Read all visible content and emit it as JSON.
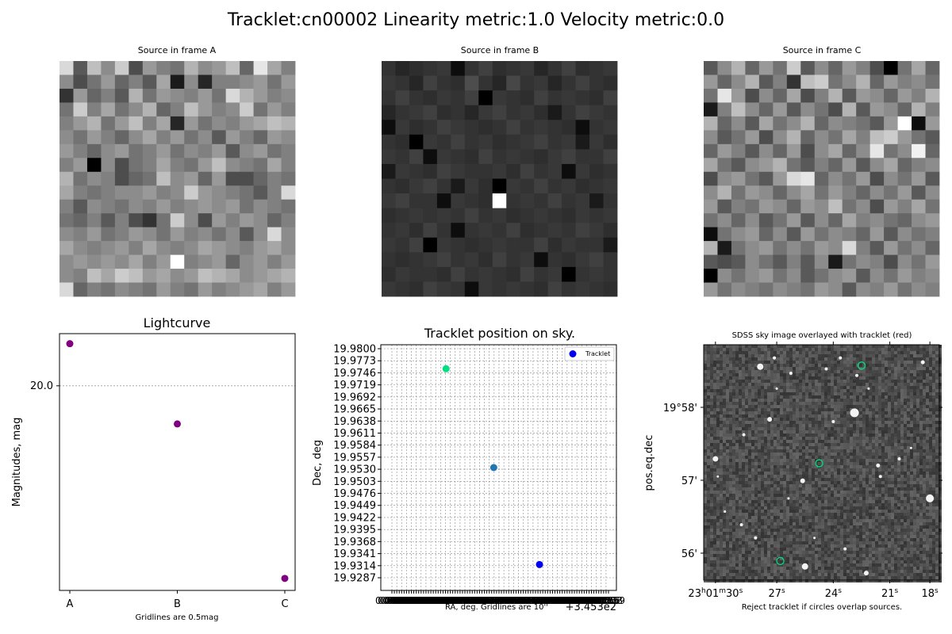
{
  "figure": {
    "title": "Tracklet:cn00002 Linearity metric:1.0 Velocity metric:0.0"
  },
  "stamps": [
    {
      "title": "Source in frame A",
      "pixels": [
        [
          0.85,
          0.35,
          0.75,
          0.55,
          0.8,
          0.3,
          0.6,
          0.5,
          0.45,
          0.7,
          0.55,
          0.6,
          0.75,
          0.4,
          0.9,
          0.65,
          0.5
        ],
        [
          0.55,
          0.3,
          0.45,
          0.6,
          0.4,
          0.5,
          0.35,
          0.65,
          0.1,
          0.55,
          0.15,
          0.5,
          0.5,
          0.55,
          0.6,
          0.45,
          0.6
        ],
        [
          0.2,
          0.6,
          0.4,
          0.5,
          0.35,
          0.7,
          0.45,
          0.6,
          0.55,
          0.5,
          0.6,
          0.45,
          0.85,
          0.7,
          0.6,
          0.5,
          0.55
        ],
        [
          0.45,
          0.8,
          0.5,
          0.65,
          0.45,
          0.55,
          0.7,
          0.4,
          0.5,
          0.75,
          0.6,
          0.5,
          0.55,
          0.8,
          0.45,
          0.6,
          0.5
        ],
        [
          0.5,
          0.6,
          0.7,
          0.45,
          0.6,
          0.75,
          0.5,
          0.65,
          0.15,
          0.6,
          0.45,
          0.55,
          0.5,
          0.6,
          0.65,
          0.75,
          0.7
        ],
        [
          0.55,
          0.45,
          0.6,
          0.5,
          0.4,
          0.55,
          0.65,
          0.5,
          0.6,
          0.45,
          0.55,
          0.35,
          0.6,
          0.5,
          0.4,
          0.6,
          0.55
        ],
        [
          0.6,
          0.5,
          0.4,
          0.55,
          0.6,
          0.45,
          0.5,
          0.6,
          0.45,
          0.55,
          0.5,
          0.6,
          0.35,
          0.55,
          0.6,
          0.45,
          0.5
        ],
        [
          0.5,
          0.6,
          0.0,
          0.55,
          0.3,
          0.45,
          0.5,
          0.65,
          0.5,
          0.45,
          0.6,
          0.75,
          0.55,
          0.5,
          0.45,
          0.65,
          0.5
        ],
        [
          0.7,
          0.45,
          0.55,
          0.5,
          0.3,
          0.4,
          0.45,
          0.75,
          0.55,
          0.6,
          0.4,
          0.6,
          0.3,
          0.3,
          0.4,
          0.5,
          0.45
        ],
        [
          0.65,
          0.5,
          0.45,
          0.5,
          0.55,
          0.55,
          0.6,
          0.5,
          0.55,
          0.8,
          0.6,
          0.55,
          0.5,
          0.45,
          0.35,
          0.5,
          0.85
        ],
        [
          0.5,
          0.35,
          0.55,
          0.5,
          0.45,
          0.55,
          0.5,
          0.6,
          0.5,
          0.55,
          0.6,
          0.55,
          0.6,
          0.45,
          0.55,
          0.5,
          0.45
        ],
        [
          0.45,
          0.4,
          0.5,
          0.35,
          0.5,
          0.3,
          0.2,
          0.45,
          0.8,
          0.55,
          0.3,
          0.6,
          0.5,
          0.6,
          0.55,
          0.4,
          0.5
        ],
        [
          0.55,
          0.5,
          0.6,
          0.45,
          0.5,
          0.6,
          0.55,
          0.45,
          0.6,
          0.5,
          0.55,
          0.45,
          0.55,
          0.35,
          0.55,
          0.85,
          0.55
        ],
        [
          0.65,
          0.55,
          0.5,
          0.55,
          0.6,
          0.5,
          0.65,
          0.55,
          0.5,
          0.55,
          0.65,
          0.6,
          0.55,
          0.5,
          0.6,
          0.65,
          0.55
        ],
        [
          0.55,
          0.6,
          0.55,
          0.6,
          0.55,
          0.65,
          0.5,
          0.6,
          1.0,
          0.5,
          0.55,
          0.6,
          0.4,
          0.55,
          0.6,
          0.5,
          0.6
        ],
        [
          0.55,
          0.5,
          0.75,
          0.65,
          0.8,
          0.75,
          0.6,
          0.65,
          0.55,
          0.6,
          0.75,
          0.7,
          0.65,
          0.55,
          0.6,
          0.65,
          0.7
        ],
        [
          0.85,
          0.4,
          0.5,
          0.45,
          0.55,
          0.5,
          0.45,
          0.6,
          0.5,
          0.45,
          0.6,
          0.5,
          0.55,
          0.6,
          0.65,
          0.5,
          0.6
        ]
      ]
    },
    {
      "title": "Source in frame B",
      "pixels": [
        [
          0.2,
          0.15,
          0.18,
          0.2,
          0.22,
          0.05,
          0.2,
          0.25,
          0.18,
          0.2,
          0.22,
          0.15,
          0.2,
          0.25,
          0.18,
          0.2,
          0.22
        ],
        [
          0.22,
          0.2,
          0.15,
          0.25,
          0.2,
          0.18,
          0.3,
          0.2,
          0.15,
          0.28,
          0.2,
          0.22,
          0.15,
          0.2,
          0.25,
          0.2,
          0.18
        ],
        [
          0.2,
          0.25,
          0.2,
          0.18,
          0.22,
          0.2,
          0.25,
          0.0,
          0.22,
          0.2,
          0.18,
          0.25,
          0.2,
          0.22,
          0.2,
          0.18,
          0.25
        ],
        [
          0.15,
          0.2,
          0.22,
          0.25,
          0.18,
          0.2,
          0.15,
          0.22,
          0.25,
          0.2,
          0.22,
          0.18,
          0.1,
          0.2,
          0.25,
          0.22,
          0.2
        ],
        [
          0.05,
          0.22,
          0.18,
          0.2,
          0.25,
          0.22,
          0.2,
          0.18,
          0.2,
          0.25,
          0.2,
          0.22,
          0.2,
          0.18,
          0.05,
          0.2,
          0.22
        ],
        [
          0.2,
          0.18,
          0.0,
          0.22,
          0.2,
          0.25,
          0.2,
          0.22,
          0.18,
          0.2,
          0.22,
          0.25,
          0.2,
          0.22,
          0.1,
          0.22,
          0.18
        ],
        [
          0.22,
          0.2,
          0.25,
          0.05,
          0.22,
          0.2,
          0.18,
          0.25,
          0.2,
          0.22,
          0.2,
          0.18,
          0.22,
          0.25,
          0.2,
          0.2,
          0.25
        ],
        [
          0.1,
          0.22,
          0.2,
          0.18,
          0.25,
          0.22,
          0.2,
          0.2,
          0.22,
          0.18,
          0.25,
          0.2,
          0.22,
          0.05,
          0.22,
          0.18,
          0.2
        ],
        [
          0.2,
          0.18,
          0.22,
          0.25,
          0.2,
          0.1,
          0.22,
          0.18,
          0.0,
          0.22,
          0.2,
          0.25,
          0.2,
          0.22,
          0.18,
          0.2,
          0.22
        ],
        [
          0.22,
          0.25,
          0.2,
          0.2,
          0.05,
          0.22,
          0.2,
          0.18,
          1.0,
          0.2,
          0.22,
          0.2,
          0.25,
          0.2,
          0.22,
          0.1,
          0.2
        ],
        [
          0.18,
          0.2,
          0.22,
          0.2,
          0.22,
          0.2,
          0.25,
          0.2,
          0.22,
          0.18,
          0.2,
          0.22,
          0.2,
          0.18,
          0.22,
          0.2,
          0.22
        ],
        [
          0.2,
          0.22,
          0.18,
          0.25,
          0.2,
          0.05,
          0.2,
          0.22,
          0.2,
          0.25,
          0.18,
          0.2,
          0.22,
          0.2,
          0.25,
          0.22,
          0.18
        ],
        [
          0.22,
          0.2,
          0.25,
          0.0,
          0.22,
          0.2,
          0.18,
          0.2,
          0.22,
          0.2,
          0.2,
          0.25,
          0.18,
          0.22,
          0.2,
          0.2,
          0.1
        ],
        [
          0.2,
          0.18,
          0.2,
          0.22,
          0.25,
          0.2,
          0.22,
          0.18,
          0.25,
          0.2,
          0.22,
          0.05,
          0.2,
          0.18,
          0.22,
          0.25,
          0.2
        ],
        [
          0.18,
          0.22,
          0.2,
          0.2,
          0.18,
          0.25,
          0.2,
          0.22,
          0.2,
          0.18,
          0.25,
          0.2,
          0.22,
          0.0,
          0.2,
          0.22,
          0.2
        ],
        [
          0.22,
          0.2,
          0.18,
          0.25,
          0.22,
          0.2,
          0.05,
          0.22,
          0.2,
          0.22,
          0.2,
          0.18,
          0.25,
          0.2,
          0.22,
          0.2,
          0.18
        ]
      ]
    },
    {
      "title": "Source in frame C",
      "pixels": [
        [
          0.35,
          0.55,
          0.7,
          0.4,
          0.6,
          0.45,
          0.8,
          0.35,
          0.55,
          0.4,
          0.6,
          0.5,
          0.3,
          0.0,
          0.45,
          0.65,
          0.4
        ],
        [
          0.6,
          0.4,
          0.55,
          0.7,
          0.35,
          0.5,
          0.2,
          0.75,
          0.8,
          0.45,
          0.55,
          0.7,
          0.4,
          0.6,
          0.5,
          0.55,
          0.45
        ],
        [
          0.45,
          0.9,
          0.6,
          0.3,
          0.55,
          0.4,
          0.65,
          0.3,
          0.5,
          0.7,
          0.35,
          0.6,
          0.55,
          0.4,
          0.6,
          0.5,
          0.7
        ],
        [
          0.1,
          0.5,
          0.75,
          0.55,
          0.4,
          0.6,
          0.35,
          0.55,
          0.45,
          0.3,
          0.7,
          0.35,
          0.6,
          0.55,
          0.4,
          0.7,
          0.5
        ],
        [
          0.7,
          0.4,
          0.55,
          0.35,
          0.65,
          0.45,
          0.55,
          0.7,
          0.4,
          0.55,
          0.5,
          0.45,
          0.35,
          0.6,
          1.0,
          0.05,
          0.6
        ],
        [
          0.55,
          0.35,
          0.45,
          0.6,
          0.3,
          0.55,
          0.7,
          0.4,
          0.55,
          0.45,
          0.65,
          0.5,
          0.75,
          0.8,
          0.6,
          0.45,
          0.35
        ],
        [
          0.4,
          0.6,
          0.5,
          0.35,
          0.55,
          0.4,
          0.6,
          0.3,
          0.55,
          0.65,
          0.4,
          0.55,
          0.9,
          0.45,
          0.55,
          0.95,
          0.4
        ],
        [
          0.65,
          0.45,
          0.35,
          0.55,
          0.6,
          0.7,
          0.45,
          0.35,
          0.5,
          0.4,
          0.6,
          0.35,
          0.55,
          0.65,
          0.4,
          0.5,
          0.55
        ],
        [
          0.3,
          0.55,
          0.6,
          0.45,
          0.35,
          0.6,
          0.85,
          0.9,
          0.4,
          0.55,
          0.45,
          0.6,
          0.3,
          0.55,
          0.45,
          0.6,
          0.35
        ],
        [
          0.55,
          0.7,
          0.45,
          0.6,
          0.55,
          0.4,
          0.55,
          0.65,
          0.45,
          0.6,
          0.5,
          0.4,
          0.55,
          0.45,
          0.6,
          0.35,
          0.55
        ],
        [
          0.6,
          0.35,
          0.5,
          0.45,
          0.6,
          0.55,
          0.4,
          0.6,
          0.55,
          0.75,
          0.45,
          0.55,
          0.3,
          0.6,
          0.5,
          0.65,
          0.45
        ],
        [
          0.45,
          0.55,
          0.4,
          0.55,
          0.35,
          0.45,
          0.6,
          0.35,
          0.55,
          0.4,
          0.65,
          0.5,
          0.55,
          0.45,
          0.4,
          0.55,
          0.6
        ],
        [
          0.05,
          0.45,
          0.55,
          0.6,
          0.4,
          0.55,
          0.35,
          0.6,
          0.45,
          0.55,
          0.5,
          0.4,
          0.6,
          0.35,
          0.55,
          0.45,
          0.5
        ],
        [
          0.7,
          0.1,
          0.45,
          0.55,
          0.6,
          0.45,
          0.55,
          0.45,
          0.6,
          0.55,
          0.85,
          0.5,
          0.35,
          0.6,
          0.45,
          0.55,
          0.4
        ],
        [
          0.35,
          0.3,
          0.35,
          0.55,
          0.45,
          0.35,
          0.5,
          0.35,
          0.55,
          0.1,
          0.45,
          0.55,
          0.5,
          0.3,
          0.55,
          0.45,
          0.6
        ],
        [
          0.0,
          0.55,
          0.45,
          0.55,
          0.6,
          0.45,
          0.55,
          0.35,
          0.45,
          0.55,
          0.6,
          0.35,
          0.55,
          0.45,
          0.6,
          0.5,
          0.55
        ],
        [
          0.6,
          0.45,
          0.55,
          0.5,
          0.45,
          0.55,
          0.5,
          0.45,
          0.6,
          0.55,
          0.35,
          0.55,
          0.5,
          0.6,
          0.45,
          0.55,
          0.5
        ]
      ]
    }
  ],
  "chart_data": [
    {
      "type": "scatter",
      "title": "Lightcurve",
      "xlabel": "Gridlines are 0.5mag",
      "ylabel": "Magnitudes, mag",
      "categories": [
        "A",
        "B",
        "C"
      ],
      "values": [
        19.79,
        20.19,
        20.96
      ],
      "ylim": [
        19.74,
        21.02
      ],
      "y_ticks": [
        "20.0"
      ],
      "y_tick_values": [
        20.0
      ],
      "grid": "dashed horizontal",
      "color": "#800080"
    },
    {
      "type": "scatter",
      "title": "Tracklet position on sky.",
      "xlabel": "RA, deg.  Gridlines are 10''",
      "ylabel": "Dec, deg",
      "x_offset_label": "+3.453e2",
      "x_tick_labels": [
        "0.0027",
        "0.0030",
        "0.0032",
        "0.0035",
        "0.0038",
        "0.0040",
        "0.0043",
        "0.0045",
        "0.0048",
        "0.0050",
        "0.0053",
        "0.0056",
        "0.0058",
        "0.0061",
        "0.0064",
        "0.0066",
        "0.0069",
        "0.0072",
        "0.0074",
        "0.0077",
        "0.0080",
        "0.0082",
        "0.0085",
        "0.0087",
        "0.0090",
        "0.0093",
        "0.0095",
        "0.0098",
        "0.0100",
        "0.0103",
        "0.0106",
        "0.0108",
        "0.0111",
        "0.0113",
        "0.0116",
        "0.0119",
        "0.0121",
        "0.0124",
        "0.0127",
        "0.0129",
        "0.0132",
        "0.0135",
        "0.0137",
        "0.0140",
        "0.0142",
        "0.0145",
        "0.0148",
        "0.0150",
        "0.0153",
        "0.0156",
        "0.0158",
        "0.0161",
        "0.0163",
        "0.0166",
        "0.0169",
        "0.0171",
        "0.0174",
        "0.0177",
        "0.0179",
        "0.0182",
        "0.0184",
        "0.0187",
        "0.0190",
        "0.0192",
        "0.0195",
        "0.0198",
        "0.0200",
        "0.0203",
        "0.0205",
        "0.0208",
        "0.0211",
        "0.0213",
        "0.0216",
        "0.0219",
        "0.0221",
        "0.0224",
        "0.0227",
        "0.0229",
        "0.0232",
        "0.0234",
        "0.0237",
        "0.0240",
        "0.0242",
        "0.0245",
        "0.0248",
        "0.0250",
        "0.0253",
        "0.0255",
        "0.0258",
        "0.0259"
      ],
      "y_ticks": [
        "19.9800",
        "19.9773",
        "19.9746",
        "19.9719",
        "19.9692",
        "19.9665",
        "19.9638",
        "19.9611",
        "19.9584",
        "19.9557",
        "19.9530",
        "19.9503",
        "19.9476",
        "19.9449",
        "19.9422",
        "19.9395",
        "19.9368",
        "19.9341",
        "19.9314",
        "19.9287"
      ],
      "xlim": [
        0.002,
        0.0262
      ],
      "ylim": [
        19.928,
        19.9812
      ],
      "points": [
        {
          "x": 0.0087,
          "y": 19.976,
          "color": "#00e080"
        },
        {
          "x": 0.0136,
          "y": 19.9546,
          "color": "#1f77b4"
        },
        {
          "x": 0.0183,
          "y": 19.9336,
          "color": "#0000ee"
        }
      ],
      "legend": {
        "entries": [
          "Tracklet"
        ],
        "placement": "upper-right",
        "color": "#0000ee"
      },
      "grid": "dashed"
    },
    {
      "type": "image",
      "title": "SDSS sky image overlayed with tracklet (red)",
      "xlabel": "Reject tracklet if circles overlap sources.",
      "ylabel": "pos.eq.dec",
      "x_ticks": [
        {
          "h": "23",
          "m": "01",
          "s": "30",
          "sub": ""
        },
        {
          "h": "",
          "m": "",
          "s": "27",
          "sub": ""
        },
        {
          "h": "",
          "m": "",
          "s": "24",
          "sub": ""
        },
        {
          "h": "",
          "m": "",
          "s": "21",
          "sub": ""
        },
        {
          "h": "",
          "m": "",
          "s": "18",
          "sub": ""
        }
      ],
      "y_ticks": [
        "19°58'",
        "57'",
        "56'"
      ],
      "circles": [
        {
          "x": 0.67,
          "y": 0.095
        },
        {
          "x": 0.49,
          "y": 0.54
        },
        {
          "x": 0.325,
          "y": 0.985
        }
      ],
      "circle_color": "#00e080"
    }
  ]
}
